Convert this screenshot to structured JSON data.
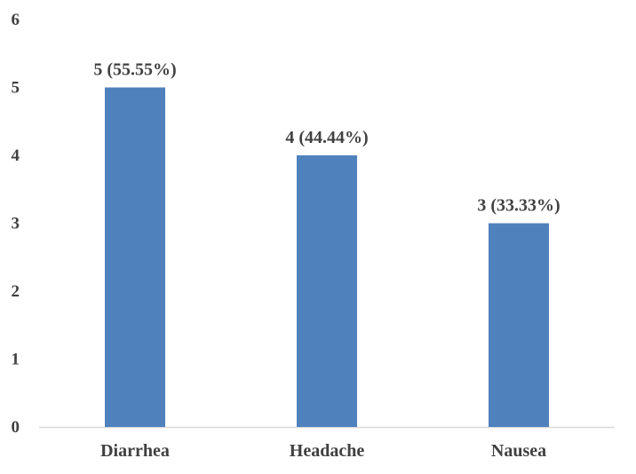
{
  "chart_data": {
    "type": "bar",
    "categories": [
      "Diarrhea",
      "Headache",
      "Nausea"
    ],
    "values": [
      5,
      4,
      3
    ],
    "data_labels": [
      "5 (55.55%)",
      "4 (44.44%)",
      "3 (33.33%)"
    ],
    "y_ticks": [
      "0",
      "1",
      "2",
      "3",
      "4",
      "5",
      "6"
    ],
    "ylim": [
      0,
      6
    ],
    "grid": false,
    "legend": "none",
    "title": "",
    "xlabel": "",
    "ylabel": "",
    "bar_color": "#4F81BD",
    "axis_color": "#D9D9D9",
    "text_color": "#404040"
  }
}
